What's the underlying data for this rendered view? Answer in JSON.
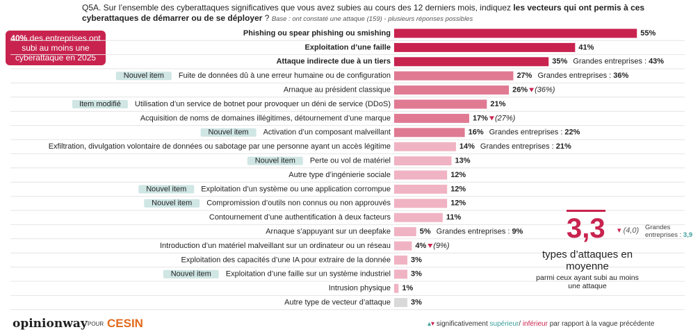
{
  "header": {
    "question_prefix": "Q5A. Sur l’ensemble des cyberattaques significatives que vous avez subies au cours des 12 derniers mois, indiquez ",
    "question_emphasis": "les vecteurs qui ont permis à ces cyberattaques de démarrer ou de se déployer",
    "question_suffix": "?",
    "base": "Base : ont constaté une attaque (159) - plusieurs réponses possibles"
  },
  "callout": {
    "value": "40%",
    "text": "des entreprises ont subi au moins une cyberattaque en 2025"
  },
  "average": {
    "value": "3,3",
    "previous": "(4,0)",
    "note_label": "Grandes entreprises :",
    "note_value": "3,9",
    "label": "types d’attaques en moyenne",
    "sublabel": "parmi ceux ayant subi au moins une attaque"
  },
  "footer": {
    "brand": "opinionway",
    "for": "POUR",
    "client": "CESIN",
    "legend_prefix": "significativement",
    "legend_up": "supérieur",
    "legend_sep": "/",
    "legend_down": "inférieur",
    "legend_suffix": "par rapport à la vague précédente"
  },
  "chart_data": {
    "type": "bar",
    "orientation": "horizontal",
    "categories": [
      "Phishing ou spear phishing ou smishing",
      "Exploitation d’une faille",
      "Attaque indirecte due à un tiers",
      "Fuite de données dû à une erreur humaine ou de configuration",
      "Arnaque au président classique",
      "Utilisation d’un service de botnet pour provoquer un déni de service (DDoS)",
      "Acquisition de noms de domaines illégitimes, détournement d’une marque",
      "Activation d’un composant malveillant",
      "Exfiltration, divulgation volontaire de données ou sabotage par une personne ayant un accès légitime",
      "Perte ou vol de matériel",
      "Autre type d’ingénierie sociale",
      "Exploitation d’un système ou une application corrompue",
      "Compromission d’outils non connus ou non approuvés",
      "Contournement d’une authentification à deux facteurs",
      "Arnaque s’appuyant sur un deepfake",
      "Introduction d’un matériel malveillant sur un ordinateur ou un réseau",
      "Exploitation des capacités d’une IA pour extraire de la donnée",
      "Exploitation d’une faille sur un système industriel",
      "Intrusion physique",
      "Autre type de vecteur d’attaque"
    ],
    "values": [
      55,
      41,
      35,
      27,
      26,
      21,
      17,
      16,
      14,
      13,
      12,
      12,
      12,
      11,
      5,
      4,
      3,
      3,
      1,
      3
    ],
    "value_labels": [
      "55%",
      "41%",
      "35%",
      "27%",
      "26%",
      "21%",
      "17%",
      "16%",
      "14%",
      "13%",
      "12%",
      "12%",
      "12%",
      "11%",
      "5%",
      "4%",
      "3%",
      "3%",
      "1%",
      "3%"
    ],
    "colors": [
      "#c8234f",
      "#c8234f",
      "#c8234f",
      "#e07a93",
      "#e07a93",
      "#e07a93",
      "#e07a93",
      "#e07a93",
      "#f0b3c3",
      "#f0b3c3",
      "#f0b3c3",
      "#f0b3c3",
      "#f0b3c3",
      "#f0b3c3",
      "#f0b3c3",
      "#f0b3c3",
      "#f0b3c3",
      "#f0b3c3",
      "#f0b3c3",
      "#d9d9d9"
    ],
    "bold": [
      true,
      true,
      true,
      false,
      false,
      false,
      false,
      false,
      false,
      false,
      false,
      false,
      false,
      false,
      false,
      false,
      false,
      false,
      false,
      false
    ],
    "tags": [
      null,
      null,
      null,
      "Nouvel item",
      null,
      "Item modifié",
      null,
      "Nouvel item",
      null,
      "Nouvel item",
      null,
      "Nouvel item",
      "Nouvel item",
      null,
      null,
      null,
      null,
      "Nouvel item",
      null,
      null
    ],
    "previous": [
      null,
      null,
      null,
      null,
      "(36%)",
      null,
      "(27%)",
      null,
      null,
      null,
      null,
      null,
      null,
      null,
      null,
      "(9%)",
      null,
      null,
      null,
      null
    ],
    "notes": [
      null,
      null,
      {
        "label": "Grandes entreprises :",
        "value": "43%"
      },
      {
        "label": "Grandes entreprises :",
        "value": "36%"
      },
      null,
      null,
      null,
      {
        "label": "Grandes entreprises :",
        "value": "22%"
      },
      {
        "label": "Grandes entreprises :",
        "value": "21%"
      },
      null,
      null,
      null,
      null,
      null,
      {
        "label": "Grandes entreprises :",
        "value": "9%"
      },
      null,
      null,
      null,
      null,
      null
    ]
  }
}
